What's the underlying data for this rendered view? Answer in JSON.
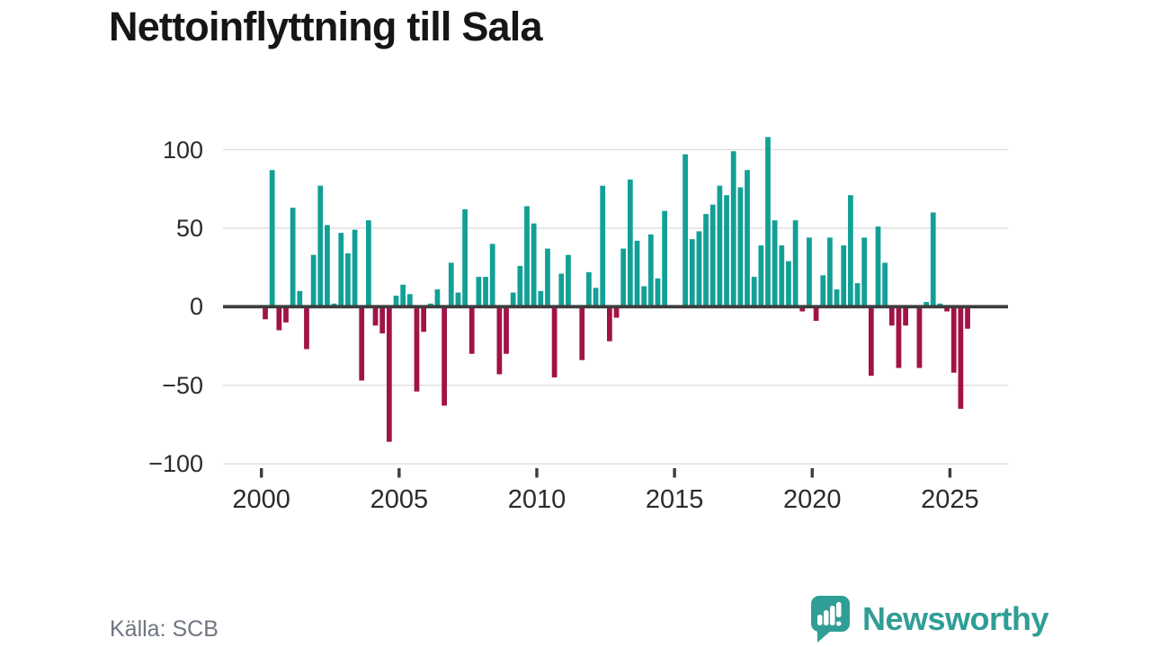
{
  "header": {
    "title": "Nettoinflyttning till Sala"
  },
  "chart_data": {
    "type": "bar",
    "title": "Nettoinflyttning till Sala",
    "frequency": "quarterly",
    "x_start": "2000-Q1",
    "x_end": "2025-Q3",
    "values": [
      -8,
      87,
      -15,
      -10,
      63,
      10,
      -27,
      33,
      77,
      52,
      2,
      47,
      34,
      49,
      -47,
      55,
      -12,
      -17,
      -86,
      7,
      14,
      8,
      -54,
      -16,
      2,
      11,
      -63,
      28,
      9,
      62,
      -30,
      19,
      19,
      40,
      -43,
      -30,
      9,
      26,
      64,
      53,
      10,
      37,
      -45,
      21,
      33,
      0,
      -34,
      22,
      12,
      77,
      -22,
      -7,
      37,
      81,
      42,
      13,
      46,
      18,
      61,
      0,
      0,
      97,
      43,
      48,
      59,
      65,
      77,
      71,
      99,
      76,
      87,
      19,
      39,
      108,
      55,
      39,
      29,
      55,
      -3,
      44,
      -9,
      20,
      44,
      11,
      39,
      71,
      15,
      44,
      -44,
      51,
      28,
      -12,
      -39,
      -12,
      0,
      -39,
      3,
      60,
      2,
      -3,
      -42,
      -65,
      -14
    ],
    "x_tick_years": [
      2000,
      2005,
      2010,
      2015,
      2020,
      2025
    ],
    "x_tick_labels": [
      "2000",
      "2005",
      "2010",
      "2015",
      "2020",
      "2025"
    ],
    "y_ticks": [
      100,
      50,
      0,
      -50,
      -100
    ],
    "y_tick_labels": [
      "100",
      "50",
      "0",
      "−50",
      "−100"
    ],
    "ylim": [
      -100,
      110
    ],
    "grid": "horizontal",
    "legend": "none",
    "positive_color": "#12A096",
    "negative_color": "#A11347",
    "zero_line_color": "#3D3D3D",
    "gridline_color": "#DCDCDC"
  },
  "source": {
    "label": "Källa: SCB"
  },
  "brand": {
    "name": "Newsworthy"
  }
}
